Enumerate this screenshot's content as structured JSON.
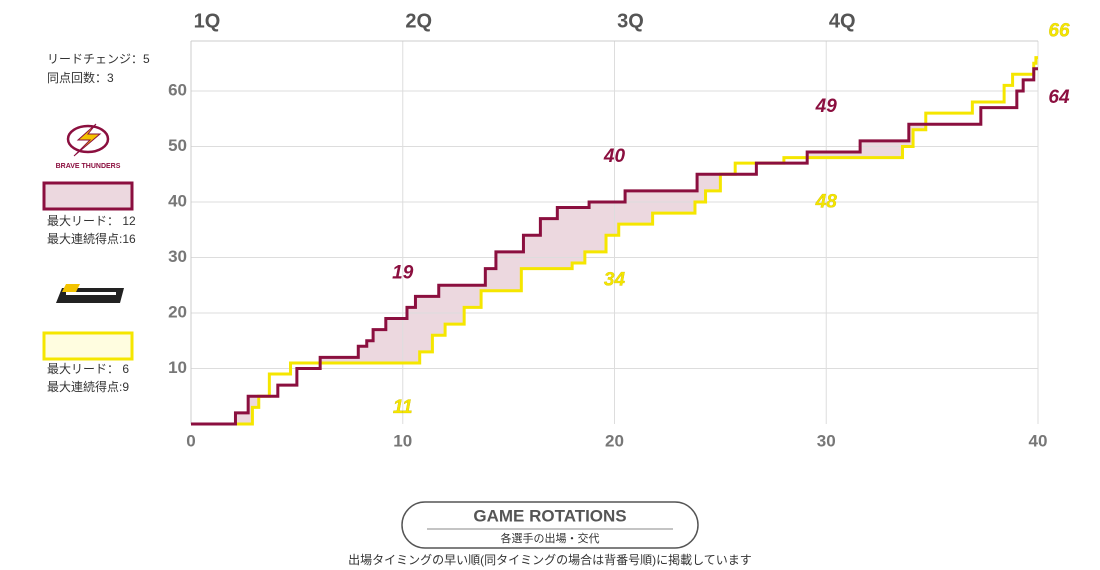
{
  "stats": {
    "lead_changes": "リードチェンジ：5",
    "ties": "同点回数：3"
  },
  "footer": {
    "button": "GAME ROTATIONS",
    "button_sub": "各選手の出場・交代",
    "note": "出場タイミングの早い順(同タイミングの場合は背番号順)に掲載しています"
  },
  "chart_data": {
    "type": "step",
    "xlim": [
      0,
      40
    ],
    "ylim": [
      0,
      69
    ],
    "xticks": [
      0,
      10,
      20,
      30,
      40
    ],
    "yticks": [
      10,
      20,
      30,
      40,
      50,
      60
    ],
    "grid": true,
    "quarters": [
      {
        "value": 0,
        "label": "1Q"
      },
      {
        "value": 10,
        "label": "2Q"
      },
      {
        "value": 20,
        "label": "3Q"
      },
      {
        "value": 30,
        "label": "4Q"
      }
    ],
    "series": [
      {
        "name": "BRAVE THUNDERS",
        "color": "#8b0f3f",
        "fill": "#ecd8df",
        "x": [
          0,
          2.1,
          2.7,
          4.1,
          5.0,
          6.1,
          7.9,
          8.3,
          8.6,
          9.2,
          10.2,
          10.6,
          11.7,
          13.9,
          14.4,
          15.7,
          16.5,
          17.3,
          18.8,
          20.5,
          23.9,
          26.7,
          29.1,
          31.6,
          33.9,
          37.3,
          39.0,
          39.3,
          39.8,
          40
        ],
        "values": [
          0,
          2,
          5,
          7,
          10,
          12,
          14,
          15,
          17,
          19,
          21,
          23,
          25,
          28,
          31,
          34,
          37,
          39,
          40,
          42,
          45,
          47,
          49,
          51,
          54,
          57,
          60,
          62,
          64,
          64
        ],
        "quarter_scores": [
          19,
          40,
          49,
          64
        ],
        "max_lead": "最大リード： 12",
        "max_run": "最大連続得点:16"
      },
      {
        "color": "#f5e600",
        "fill": "#ffffff",
        "x": [
          0,
          2.9,
          3.2,
          3.7,
          4.7,
          10.8,
          11.4,
          12.0,
          12.9,
          13.7,
          15.6,
          18.0,
          18.6,
          19.6,
          20.2,
          21.8,
          23.8,
          24.3,
          25.0,
          25.7,
          28.0,
          33.6,
          34.1,
          34.7,
          36.9,
          38.4,
          38.8,
          39.8,
          39.9,
          40
        ],
        "values": [
          0,
          3,
          5,
          9,
          11,
          13,
          16,
          18,
          21,
          24,
          28,
          29,
          31,
          34,
          36,
          38,
          40,
          42,
          45,
          47,
          48,
          50,
          53,
          56,
          58,
          61,
          63,
          65,
          66,
          66
        ],
        "quarter_scores": [
          11,
          34,
          48,
          66
        ],
        "max_lead": "最大リード： 6",
        "max_run": "最大連続得点:9"
      }
    ]
  }
}
